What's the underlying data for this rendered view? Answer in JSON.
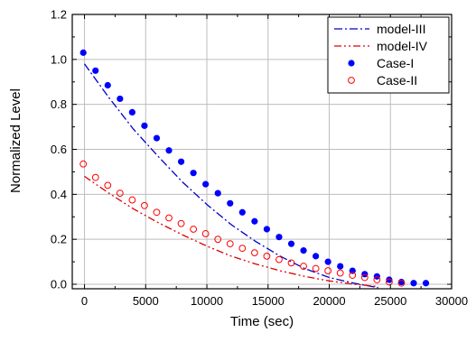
{
  "chart_data": {
    "type": "line",
    "xlabel": "Time (sec)",
    "ylabel": "Normalized Level",
    "xlim": [
      -1000,
      30000
    ],
    "ylim": [
      -0.02,
      1.2
    ],
    "xticks": [
      0,
      5000,
      10000,
      15000,
      20000,
      25000,
      30000
    ],
    "xtick_labels": [
      "0",
      "5000",
      "10000",
      "15000",
      "20000",
      "25000",
      "30000"
    ],
    "yticks": [
      0.0,
      0.2,
      0.4,
      0.6,
      0.8,
      1.0,
      1.2
    ],
    "ytick_labels": [
      "0.0",
      "0.2",
      "0.4",
      "0.6",
      "0.8",
      "1.0",
      "1.2"
    ],
    "grid": true,
    "legend_position": "top-right",
    "series": [
      {
        "name": "model-III",
        "kind": "line",
        "style": "dash-dot",
        "color": "#0000cc",
        "x": [
          0,
          2000,
          4000,
          6000,
          8000,
          10000,
          12000,
          14000,
          16000,
          18000,
          20000,
          22000,
          23000,
          24000
        ],
        "y": [
          0.98,
          0.83,
          0.69,
          0.57,
          0.455,
          0.355,
          0.265,
          0.19,
          0.125,
          0.07,
          0.03,
          0.005,
          -0.005,
          -0.015
        ]
      },
      {
        "name": "model-IV",
        "kind": "line",
        "style": "dash-dot-dot",
        "color": "#dd0000",
        "x": [
          0,
          2000,
          4000,
          6000,
          8000,
          10000,
          12000,
          14000,
          16000,
          18000,
          20000,
          22000,
          24000
        ],
        "y": [
          0.48,
          0.405,
          0.335,
          0.275,
          0.22,
          0.17,
          0.125,
          0.09,
          0.06,
          0.035,
          0.015,
          0.0,
          -0.01
        ]
      },
      {
        "name": "Case-I",
        "kind": "marker",
        "marker": "filled-circle",
        "color": "#0000ff",
        "x": [
          -100,
          900,
          1900,
          2900,
          3900,
          4900,
          5900,
          6900,
          7900,
          8900,
          9900,
          10900,
          11900,
          12900,
          13900,
          14900,
          15900,
          16900,
          17900,
          18900,
          19900,
          20900,
          21900,
          22900,
          23900,
          24900,
          25900,
          26900,
          27900
        ],
        "y": [
          1.03,
          0.95,
          0.885,
          0.825,
          0.765,
          0.705,
          0.65,
          0.595,
          0.545,
          0.495,
          0.445,
          0.405,
          0.36,
          0.32,
          0.28,
          0.245,
          0.21,
          0.18,
          0.15,
          0.125,
          0.1,
          0.08,
          0.06,
          0.045,
          0.035,
          0.02,
          0.01,
          0.005,
          0.005
        ]
      },
      {
        "name": "Case-II",
        "kind": "marker",
        "marker": "open-circle",
        "color": "#ff0000",
        "x": [
          -100,
          900,
          1900,
          2900,
          3900,
          4900,
          5900,
          6900,
          7900,
          8900,
          9900,
          10900,
          11900,
          12900,
          13900,
          14900,
          15900,
          16900,
          17900,
          18900,
          19900,
          20900,
          21900,
          22900,
          23900,
          24900,
          25900
        ],
        "y": [
          0.535,
          0.475,
          0.44,
          0.405,
          0.375,
          0.35,
          0.32,
          0.295,
          0.27,
          0.245,
          0.225,
          0.2,
          0.18,
          0.16,
          0.14,
          0.125,
          0.11,
          0.095,
          0.08,
          0.07,
          0.06,
          0.05,
          0.04,
          0.03,
          0.02,
          0.01,
          0.005
        ]
      }
    ]
  }
}
